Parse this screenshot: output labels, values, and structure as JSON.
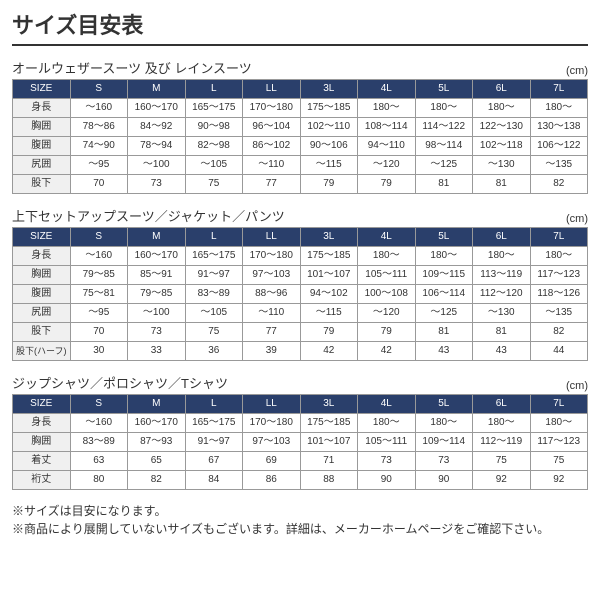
{
  "page_title": "サイズ目安表",
  "unit_label": "(cm)",
  "size_header": "SIZE",
  "sizes": [
    "S",
    "M",
    "L",
    "LL",
    "3L",
    "4L",
    "5L",
    "6L",
    "7L"
  ],
  "tables": [
    {
      "title": "オールウェザースーツ 及び レインスーツ",
      "rows": [
        {
          "label": "身長",
          "cells": [
            "～160",
            "160～170",
            "165～175",
            "170～180",
            "175～185",
            "180～",
            "180～",
            "180～",
            "180～"
          ]
        },
        {
          "label": "胸囲",
          "cells": [
            "78～86",
            "84～92",
            "90～98",
            "96～104",
            "102～110",
            "108～114",
            "114～122",
            "122～130",
            "130～138"
          ]
        },
        {
          "label": "腹囲",
          "cells": [
            "74～90",
            "78～94",
            "82～98",
            "86～102",
            "90～106",
            "94～110",
            "98～114",
            "102～118",
            "106～122"
          ]
        },
        {
          "label": "尻囲",
          "cells": [
            "～95",
            "～100",
            "～105",
            "～110",
            "～115",
            "～120",
            "～125",
            "～130",
            "～135"
          ]
        },
        {
          "label": "股下",
          "cells": [
            "70",
            "73",
            "75",
            "77",
            "79",
            "79",
            "81",
            "81",
            "82"
          ]
        }
      ]
    },
    {
      "title": "上下セットアップスーツ／ジャケット／パンツ",
      "rows": [
        {
          "label": "身長",
          "cells": [
            "～160",
            "160～170",
            "165～175",
            "170～180",
            "175～185",
            "180～",
            "180～",
            "180～",
            "180～"
          ]
        },
        {
          "label": "胸囲",
          "cells": [
            "79～85",
            "85～91",
            "91～97",
            "97～103",
            "101～107",
            "105～111",
            "109～115",
            "113～119",
            "117～123"
          ]
        },
        {
          "label": "腹囲",
          "cells": [
            "75～81",
            "79～85",
            "83～89",
            "88～96",
            "94～102",
            "100～108",
            "106～114",
            "112～120",
            "118～126"
          ]
        },
        {
          "label": "尻囲",
          "cells": [
            "～95",
            "～100",
            "～105",
            "～110",
            "～115",
            "～120",
            "～125",
            "～130",
            "～135"
          ]
        },
        {
          "label": "股下",
          "cells": [
            "70",
            "73",
            "75",
            "77",
            "79",
            "79",
            "81",
            "81",
            "82"
          ]
        },
        {
          "label": "股下(ハーフ)",
          "cells": [
            "30",
            "33",
            "36",
            "39",
            "42",
            "42",
            "43",
            "43",
            "44"
          ],
          "small": true
        }
      ]
    },
    {
      "title": "ジップシャツ／ポロシャツ／Tシャツ",
      "rows": [
        {
          "label": "身長",
          "cells": [
            "～160",
            "160～170",
            "165～175",
            "170～180",
            "175～185",
            "180～",
            "180～",
            "180～",
            "180～"
          ]
        },
        {
          "label": "胸囲",
          "cells": [
            "83～89",
            "87～93",
            "91～97",
            "97～103",
            "101～107",
            "105～111",
            "109～114",
            "112～119",
            "117～123"
          ]
        },
        {
          "label": "着丈",
          "cells": [
            "63",
            "65",
            "67",
            "69",
            "71",
            "73",
            "73",
            "75",
            "75"
          ]
        },
        {
          "label": "裄丈",
          "cells": [
            "80",
            "82",
            "84",
            "86",
            "88",
            "90",
            "90",
            "92",
            "92"
          ]
        }
      ]
    }
  ],
  "notes": [
    "※サイズは目安になります。",
    "※商品により展開していないサイズもございます。詳細は、メーカーホームページをご確認下さい。"
  ]
}
